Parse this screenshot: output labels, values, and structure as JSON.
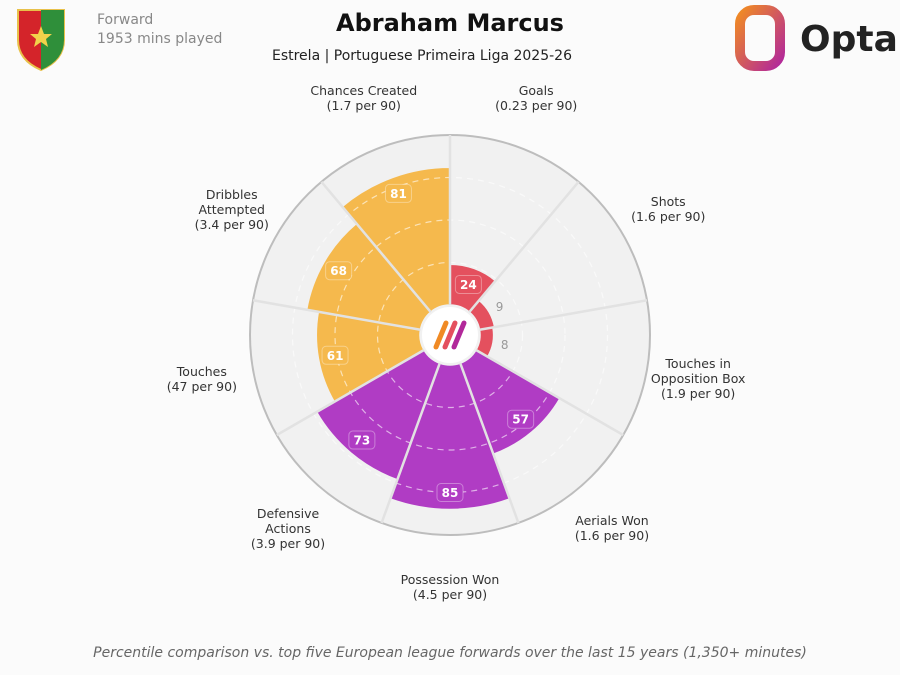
{
  "header": {
    "position": "Forward",
    "minutes": "1953 mins played",
    "brand": "Opta"
  },
  "chart_data": {
    "type": "pizza",
    "title": "Abraham Marcus",
    "subtitle": "Estrela | Portuguese Primeira Liga 2025-26",
    "categories": [
      "Chances Created",
      "Goals",
      "Shots",
      "Touches in Opposition Box",
      "Aerials Won",
      "Possession Won",
      "Defensive Actions",
      "Touches",
      "Dribbles Attempted"
    ],
    "per90": [
      "(1.7 per 90)",
      "(0.23 per 90)",
      "(1.6 per 90)",
      "(1.9 per 90)",
      "(1.6 per 90)",
      "(4.5 per 90)",
      "(3.9 per 90)",
      "(47 per 90)",
      "(3.4 per 90)"
    ],
    "values": [
      81,
      24,
      9,
      8,
      57,
      85,
      73,
      61,
      68
    ],
    "colors": [
      "#f5b94d",
      "#e4505e",
      "#e4505e",
      "#e4505e",
      "#b03cc4",
      "#b03cc4",
      "#b03cc4",
      "#f5b94d",
      "#f5b94d"
    ],
    "ylim": [
      0,
      100
    ],
    "note": "Percentile comparison vs. top five European league forwards over the last 15 years (1,350+ minutes)"
  }
}
